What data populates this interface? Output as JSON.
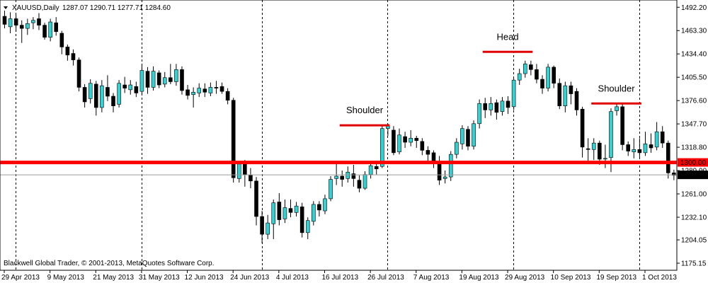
{
  "header": {
    "symbol": "XAUUSD,Daily",
    "ohlc": "1287.07 1290.71 1277.71 1284.60"
  },
  "footer": {
    "copyright": "Blackwell Global Trader, © 2001-2013, MetaQuotes Software Corp."
  },
  "colors": {
    "bull": "#33d1d1",
    "bear": "#000000",
    "support": "#ff0000",
    "annotation": "#e00000",
    "grid": "#000000",
    "price_line": "#9a9a9a"
  },
  "chart_data": {
    "type": "candlestick",
    "ylim": [
      1166.4,
      1501.2
    ],
    "yticks": [
      1492.2,
      1463.3,
      1434.4,
      1405.5,
      1376.6,
      1347.7,
      1318.8,
      1289.9,
      1261.0,
      1232.1,
      1204.05,
      1175.15
    ],
    "xticks": [
      {
        "label": "29 Apr 2013",
        "index": 0
      },
      {
        "label": "9 May 2013",
        "index": 8
      },
      {
        "label": "21 May 2013",
        "index": 16
      },
      {
        "label": "31 May 2013",
        "index": 24
      },
      {
        "label": "12 Jun 2013",
        "index": 32
      },
      {
        "label": "24 Jun 2013",
        "index": 40
      },
      {
        "label": "4 Jul 2013",
        "index": 48
      },
      {
        "label": "16 Jul 2013",
        "index": 56
      },
      {
        "label": "26 Jul 2013",
        "index": 64
      },
      {
        "label": "7 Aug 2013",
        "index": 72
      },
      {
        "label": "19 Aug 2013",
        "index": 80
      },
      {
        "label": "29 Aug 2013",
        "index": 88
      },
      {
        "label": "10 Sep 2013",
        "index": 96
      },
      {
        "label": "19 Sep 2013",
        "index": 104
      },
      {
        "label": "1 Oct 2013",
        "index": 112
      }
    ],
    "vgrid_indices": [
      2,
      24,
      45,
      67,
      89,
      111
    ],
    "candles": [
      [
        1481,
        1471,
        1488,
        1466
      ],
      [
        1468,
        1478,
        1486,
        1460
      ],
      [
        1478,
        1470,
        1483,
        1462
      ],
      [
        1470,
        1466,
        1476,
        1448
      ],
      [
        1466,
        1472,
        1478,
        1458
      ],
      [
        1473,
        1476,
        1480,
        1465
      ],
      [
        1478,
        1470,
        1485,
        1464
      ],
      [
        1470,
        1455,
        1473,
        1452
      ],
      [
        1455,
        1474,
        1478,
        1450
      ],
      [
        1473,
        1462,
        1480,
        1457
      ],
      [
        1460,
        1443,
        1463,
        1434
      ],
      [
        1443,
        1433,
        1446,
        1426
      ],
      [
        1435,
        1427,
        1440,
        1420
      ],
      [
        1427,
        1393,
        1430,
        1388
      ],
      [
        1393,
        1375,
        1397,
        1368
      ],
      [
        1379,
        1398,
        1403,
        1373
      ],
      [
        1397,
        1368,
        1401,
        1358
      ],
      [
        1368,
        1395,
        1402,
        1362
      ],
      [
        1393,
        1382,
        1408,
        1376
      ],
      [
        1382,
        1370,
        1386,
        1362
      ],
      [
        1372,
        1398,
        1402,
        1368
      ],
      [
        1396,
        1392,
        1406,
        1386
      ],
      [
        1390,
        1396,
        1402,
        1384
      ],
      [
        1394,
        1386,
        1400,
        1381
      ],
      [
        1388,
        1414,
        1420,
        1384
      ],
      [
        1413,
        1393,
        1418,
        1385
      ],
      [
        1393,
        1413,
        1419,
        1389
      ],
      [
        1411,
        1396,
        1414,
        1392
      ],
      [
        1397,
        1405,
        1412,
        1393
      ],
      [
        1405,
        1400,
        1422,
        1397
      ],
      [
        1400,
        1415,
        1422,
        1395
      ],
      [
        1415,
        1389,
        1419,
        1384
      ],
      [
        1390,
        1383,
        1396,
        1378
      ],
      [
        1384,
        1387,
        1393,
        1368
      ],
      [
        1386,
        1392,
        1398,
        1381
      ],
      [
        1391,
        1387,
        1398,
        1381
      ],
      [
        1386,
        1393,
        1399,
        1382
      ],
      [
        1393,
        1392,
        1401,
        1385
      ],
      [
        1394,
        1388,
        1399,
        1385
      ],
      [
        1388,
        1377,
        1392,
        1372
      ],
      [
        1377,
        1281,
        1380,
        1275
      ],
      [
        1280,
        1298,
        1301,
        1275
      ],
      [
        1298,
        1285,
        1303,
        1270
      ],
      [
        1284,
        1277,
        1293,
        1268
      ],
      [
        1277,
        1233,
        1282,
        1222
      ],
      [
        1233,
        1211,
        1240,
        1200
      ],
      [
        1211,
        1225,
        1235,
        1205
      ],
      [
        1224,
        1250,
        1254,
        1205
      ],
      [
        1251,
        1229,
        1262,
        1222
      ],
      [
        1230,
        1244,
        1254,
        1225
      ],
      [
        1243,
        1238,
        1254,
        1232
      ],
      [
        1238,
        1246,
        1251,
        1233
      ],
      [
        1245,
        1213,
        1250,
        1207
      ],
      [
        1213,
        1228,
        1232,
        1205
      ],
      [
        1227,
        1248,
        1252,
        1222
      ],
      [
        1248,
        1241,
        1252,
        1233
      ],
      [
        1240,
        1255,
        1260,
        1236
      ],
      [
        1255,
        1279,
        1283,
        1252
      ],
      [
        1280,
        1283,
        1300,
        1272
      ],
      [
        1283,
        1279,
        1290,
        1270
      ],
      [
        1280,
        1288,
        1295,
        1275
      ],
      [
        1286,
        1280,
        1297,
        1270
      ],
      [
        1278,
        1268,
        1284,
        1263
      ],
      [
        1268,
        1285,
        1289,
        1266
      ],
      [
        1285,
        1296,
        1299,
        1280
      ],
      [
        1295,
        1292,
        1302,
        1285
      ],
      [
        1295,
        1342,
        1346,
        1293
      ],
      [
        1342,
        1345,
        1348,
        1333
      ],
      [
        1340,
        1312,
        1345,
        1309
      ],
      [
        1313,
        1334,
        1342,
        1310
      ],
      [
        1332,
        1325,
        1338,
        1318
      ],
      [
        1325,
        1330,
        1340,
        1320
      ],
      [
        1330,
        1327,
        1333,
        1318
      ],
      [
        1326,
        1315,
        1330,
        1309
      ],
      [
        1315,
        1310,
        1320,
        1300
      ],
      [
        1312,
        1300,
        1315,
        1293
      ],
      [
        1300,
        1278,
        1308,
        1272
      ],
      [
        1280,
        1282,
        1290,
        1274
      ],
      [
        1282,
        1310,
        1314,
        1277
      ],
      [
        1310,
        1325,
        1330,
        1305
      ],
      [
        1323,
        1342,
        1346,
        1316
      ],
      [
        1341,
        1320,
        1345,
        1315
      ],
      [
        1320,
        1348,
        1352,
        1316
      ],
      [
        1348,
        1373,
        1378,
        1342
      ],
      [
        1373,
        1365,
        1380,
        1355
      ],
      [
        1365,
        1373,
        1381,
        1358
      ],
      [
        1374,
        1362,
        1378,
        1353
      ],
      [
        1363,
        1376,
        1381,
        1358
      ],
      [
        1376,
        1368,
        1382,
        1360
      ],
      [
        1369,
        1402,
        1404,
        1365
      ],
      [
        1402,
        1410,
        1416,
        1396
      ],
      [
        1410,
        1422,
        1426,
        1405
      ],
      [
        1421,
        1415,
        1426,
        1408
      ],
      [
        1415,
        1403,
        1422,
        1398
      ],
      [
        1403,
        1392,
        1408,
        1385
      ],
      [
        1392,
        1418,
        1422,
        1388
      ],
      [
        1418,
        1398,
        1420,
        1392
      ],
      [
        1398,
        1370,
        1404,
        1366
      ],
      [
        1370,
        1395,
        1400,
        1362
      ],
      [
        1395,
        1385,
        1400,
        1372
      ],
      [
        1388,
        1365,
        1392,
        1358
      ],
      [
        1366,
        1319,
        1369,
        1306
      ],
      [
        1317,
        1316,
        1330,
        1302
      ],
      [
        1316,
        1324,
        1330,
        1303
      ],
      [
        1324,
        1304,
        1327,
        1297
      ],
      [
        1305,
        1305,
        1322,
        1293
      ],
      [
        1306,
        1363,
        1367,
        1288
      ],
      [
        1364,
        1369,
        1374,
        1358
      ],
      [
        1369,
        1322,
        1372,
        1315
      ],
      [
        1322,
        1314,
        1326,
        1308
      ],
      [
        1313,
        1316,
        1330,
        1305
      ],
      [
        1316,
        1312,
        1330,
        1306
      ],
      [
        1312,
        1323,
        1338,
        1308
      ],
      [
        1322,
        1318,
        1336,
        1312
      ],
      [
        1319,
        1338,
        1350,
        1315
      ],
      [
        1338,
        1324,
        1345,
        1318
      ],
      [
        1324,
        1287,
        1327,
        1280
      ],
      [
        1287,
        1284,
        1291,
        1278
      ]
    ],
    "support_line": {
      "price": 1300.0,
      "label": "1300.00"
    },
    "current_price": {
      "price": 1284.6,
      "label": "1284.60"
    },
    "annotations": [
      {
        "text": "Shoulder",
        "from_index": 59,
        "to_index": 67,
        "price": 1346
      },
      {
        "text": "Head",
        "from_index": 84,
        "to_index": 92,
        "price": 1437
      },
      {
        "text": "Shoulder",
        "from_index": 103,
        "to_index": 111,
        "price": 1373
      }
    ]
  }
}
